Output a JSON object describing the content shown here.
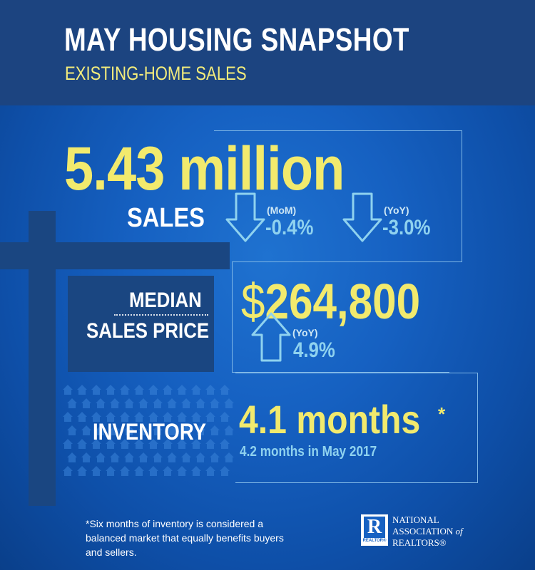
{
  "header": {
    "title": "MAY HOUSING SNAPSHOT",
    "subtitle": "EXISTING-HOME SALES"
  },
  "sales": {
    "value": "5.43 million",
    "label": "SALES",
    "mom_label": "(MoM)",
    "mom_value": "-0.4%",
    "yoy_label": "(YoY)",
    "yoy_value": "-3.0%",
    "mom_direction": "down",
    "yoy_direction": "down"
  },
  "price": {
    "label_line1": "MEDIAN",
    "label_line2": "SALES PRICE",
    "currency": "$",
    "value": "264,800",
    "yoy_label": "(YoY)",
    "yoy_value": "4.9%",
    "yoy_direction": "up"
  },
  "inventory": {
    "label": "INVENTORY",
    "value": "4.1 months",
    "asterisk": "*",
    "comparison": "4.2 months in May 2017"
  },
  "footnote": "*Six months of inventory is considered a balanced market that equally benefits buyers and sellers.",
  "branding": {
    "logo_letter": "R",
    "logo_caption": "REALTOR®",
    "line1": "NATIONAL",
    "line2": "ASSOCIATION",
    "line2_of": "of",
    "line3": "REALTORS®"
  },
  "colors": {
    "header_bg": "#1c4480",
    "accent_yellow": "#f2ea6d",
    "accent_cyan": "#8fd2ef"
  },
  "icons": [
    "sign-post-icon",
    "down-arrow-icon",
    "up-arrow-icon",
    "house-pattern-icon",
    "realtor-logo-icon"
  ]
}
